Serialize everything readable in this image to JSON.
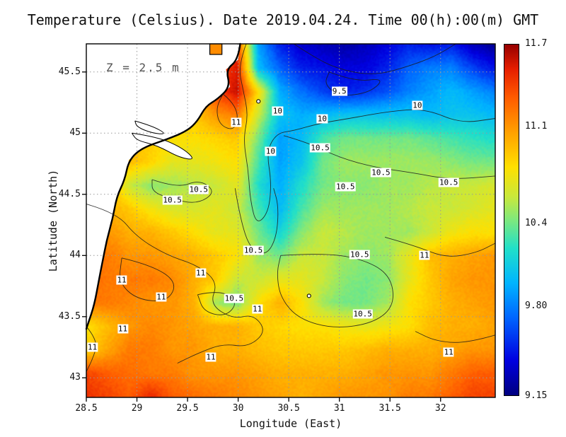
{
  "title": "Temperature (Celsius). Date 2019.04.24. Time 00(h):00(m) GMT",
  "annotation": "Z = 2.5 m",
  "axes": {
    "xlabel": "Longitude (East)",
    "ylabel": "Latitude (North)",
    "x_range": [
      28.5,
      32.54
    ],
    "y_range": [
      42.84,
      45.73
    ],
    "x_ticks": [
      28.5,
      29,
      29.5,
      30,
      30.5,
      31,
      31.5,
      32
    ],
    "x_tick_labels": [
      "28.5",
      "29",
      "29.5",
      "30",
      "30.5",
      "31",
      "31.5",
      "32"
    ],
    "y_ticks": [
      43,
      43.5,
      44,
      44.5,
      45,
      45.5
    ],
    "y_tick_labels": [
      "43",
      "43.5",
      "44",
      "44.5",
      "45",
      "45.5"
    ]
  },
  "colorbar": {
    "vmin": 9.15,
    "vmax": 11.7,
    "tick_values": [
      11.7,
      11.1,
      10.4,
      9.8,
      9.15
    ],
    "tick_labels": [
      "11.7",
      "11.1",
      "10.4",
      "9.80",
      "9.15"
    ]
  },
  "chart_data": {
    "type": "heatmap",
    "title": "Temperature (Celsius). Date 2019.04.24. Time 00(h):00(m) GMT",
    "depth_label": "Z = 2.5 m",
    "units": "Celsius",
    "x_range": [
      28.5,
      32.54
    ],
    "y_range": [
      42.84,
      45.73
    ],
    "grid_lat_top_to_bottom": [
      45.75,
      45.56,
      45.37,
      45.17,
      44.98,
      44.79,
      44.59,
      44.4,
      44.21,
      44.01,
      43.82,
      43.63,
      43.43,
      43.24,
      43.05,
      42.85
    ],
    "grid": [
      [
        11.0,
        11.0,
        11.0,
        11.0,
        11.0,
        11.0,
        11.2,
        11.4,
        9.9,
        9.5,
        9.35,
        9.3,
        9.25,
        9.3,
        9.4,
        9.5,
        9.45,
        9.5,
        9.3,
        9.2
      ],
      [
        11.0,
        11.0,
        11.0,
        11.0,
        11.0,
        11.0,
        11.3,
        11.55,
        10.0,
        9.7,
        9.5,
        9.45,
        9.4,
        9.4,
        9.5,
        9.7,
        9.8,
        9.8,
        9.6,
        9.45
      ],
      [
        11.0,
        11.0,
        11.0,
        11.0,
        11.0,
        11.0,
        11.4,
        11.6,
        10.8,
        9.95,
        9.75,
        9.6,
        9.5,
        9.55,
        9.65,
        9.8,
        9.9,
        10.0,
        9.9,
        9.8
      ],
      [
        11.0,
        11.0,
        11.0,
        11.0,
        11.0,
        10.9,
        11.1,
        11.2,
        10.6,
        10.05,
        9.95,
        10.0,
        10.05,
        10.05,
        10.05,
        10.05,
        10.0,
        10.05,
        10.05,
        10.0
      ],
      [
        11.0,
        11.0,
        11.0,
        10.9,
        10.8,
        10.8,
        10.85,
        10.9,
        10.4,
        9.9,
        10.0,
        10.3,
        10.4,
        10.4,
        10.4,
        10.4,
        10.35,
        10.3,
        10.25,
        10.2
      ],
      [
        11.0,
        11.0,
        10.95,
        10.85,
        10.7,
        10.7,
        10.75,
        10.8,
        10.3,
        9.9,
        10.05,
        10.4,
        10.5,
        10.5,
        10.5,
        10.5,
        10.5,
        10.45,
        10.4,
        10.4
      ],
      [
        11.1,
        11.0,
        10.6,
        10.45,
        10.5,
        10.55,
        10.6,
        10.7,
        10.2,
        9.95,
        10.2,
        10.4,
        10.45,
        10.45,
        10.5,
        10.5,
        10.55,
        10.6,
        10.6,
        10.65
      ],
      [
        11.1,
        11.0,
        10.9,
        10.75,
        10.65,
        10.65,
        10.7,
        10.6,
        10.3,
        10.0,
        10.3,
        10.5,
        10.5,
        10.5,
        10.5,
        10.55,
        10.6,
        10.6,
        10.65,
        10.7
      ],
      [
        11.2,
        11.1,
        11.0,
        11.0,
        10.9,
        10.8,
        10.7,
        10.7,
        10.4,
        10.15,
        10.45,
        10.6,
        10.55,
        10.5,
        10.5,
        10.5,
        10.6,
        10.75,
        10.8,
        10.8
      ],
      [
        11.2,
        11.2,
        11.1,
        11.1,
        11.05,
        11.0,
        10.9,
        10.8,
        10.5,
        10.4,
        10.6,
        10.6,
        10.5,
        10.45,
        10.5,
        10.7,
        10.95,
        11.0,
        11.05,
        11.1
      ],
      [
        11.3,
        11.2,
        11.2,
        11.2,
        11.15,
        11.0,
        10.9,
        10.6,
        10.6,
        10.7,
        10.7,
        10.6,
        10.45,
        10.4,
        10.45,
        10.7,
        10.9,
        11.05,
        11.1,
        11.1
      ],
      [
        11.2,
        11.2,
        11.15,
        11.1,
        11.1,
        11.0,
        10.5,
        10.4,
        10.8,
        11.0,
        10.8,
        10.5,
        10.4,
        10.4,
        10.5,
        10.8,
        10.9,
        11.0,
        11.05,
        11.1
      ],
      [
        10.8,
        10.95,
        11.1,
        11.15,
        11.1,
        11.05,
        11.0,
        11.0,
        10.9,
        10.85,
        10.8,
        10.8,
        10.75,
        10.7,
        10.75,
        10.8,
        10.95,
        11.0,
        11.0,
        11.05
      ],
      [
        10.85,
        11.05,
        11.2,
        11.2,
        11.1,
        11.1,
        11.0,
        11.0,
        10.95,
        10.9,
        10.9,
        10.9,
        10.9,
        10.95,
        11.0,
        11.0,
        11.0,
        11.05,
        11.1,
        11.1
      ],
      [
        11.4,
        11.3,
        11.25,
        11.2,
        11.2,
        11.1,
        11.1,
        11.1,
        11.05,
        11.0,
        11.0,
        11.0,
        11.0,
        11.05,
        11.1,
        11.1,
        11.1,
        11.2,
        11.3,
        11.3
      ],
      [
        11.45,
        11.4,
        11.3,
        11.5,
        11.3,
        11.25,
        11.2,
        11.15,
        11.1,
        11.05,
        11.0,
        11.05,
        11.1,
        11.1,
        11.1,
        11.2,
        11.2,
        11.3,
        11.4,
        11.4
      ]
    ],
    "colormap": [
      [
        0.0,
        "#000080"
      ],
      [
        0.1,
        "#0000e0"
      ],
      [
        0.22,
        "#0064ff"
      ],
      [
        0.32,
        "#00b4ff"
      ],
      [
        0.42,
        "#22e0c8"
      ],
      [
        0.5,
        "#7ee87d"
      ],
      [
        0.565,
        "#c8e83c"
      ],
      [
        0.65,
        "#ffe000"
      ],
      [
        0.75,
        "#ffa000"
      ],
      [
        0.85,
        "#ff5a00"
      ],
      [
        0.93,
        "#e61e00"
      ],
      [
        1.0,
        "#960000"
      ]
    ],
    "contour_labels": [
      {
        "v": "9.5",
        "lon": 31.0,
        "lat": 45.34
      },
      {
        "v": "10",
        "lon": 30.39,
        "lat": 45.18
      },
      {
        "v": "10",
        "lon": 30.83,
        "lat": 45.12
      },
      {
        "v": "10",
        "lon": 31.77,
        "lat": 45.23
      },
      {
        "v": "11",
        "lon": 29.98,
        "lat": 45.09
      },
      {
        "v": "10",
        "lon": 30.32,
        "lat": 44.85
      },
      {
        "v": "10.5",
        "lon": 30.81,
        "lat": 44.88
      },
      {
        "v": "10.5",
        "lon": 31.41,
        "lat": 44.68
      },
      {
        "v": "10.5",
        "lon": 32.08,
        "lat": 44.6
      },
      {
        "v": "10.5",
        "lon": 31.06,
        "lat": 44.56
      },
      {
        "v": "10.5",
        "lon": 29.61,
        "lat": 44.54
      },
      {
        "v": "10.5",
        "lon": 29.35,
        "lat": 44.45
      },
      {
        "v": "10.5",
        "lon": 30.15,
        "lat": 44.04
      },
      {
        "v": "10.5",
        "lon": 31.2,
        "lat": 44.01
      },
      {
        "v": "11",
        "lon": 31.84,
        "lat": 44.0
      },
      {
        "v": "11",
        "lon": 28.85,
        "lat": 43.8
      },
      {
        "v": "11",
        "lon": 29.63,
        "lat": 43.86
      },
      {
        "v": "10.5",
        "lon": 29.96,
        "lat": 43.65
      },
      {
        "v": "11",
        "lon": 29.24,
        "lat": 43.66
      },
      {
        "v": "11",
        "lon": 30.19,
        "lat": 43.56
      },
      {
        "v": "10.5",
        "lon": 31.23,
        "lat": 43.52
      },
      {
        "v": "11",
        "lon": 28.86,
        "lat": 43.4
      },
      {
        "v": "11",
        "lon": 28.56,
        "lat": 43.25
      },
      {
        "v": "11",
        "lon": 29.73,
        "lat": 43.17
      },
      {
        "v": "11",
        "lon": 32.08,
        "lat": 43.21
      }
    ],
    "contours": [
      {
        "level": "9.5",
        "points": [
          [
            30.55,
            45.73
          ],
          [
            30.75,
            45.62
          ],
          [
            31.0,
            45.52
          ],
          [
            31.35,
            45.47
          ],
          [
            31.7,
            45.55
          ],
          [
            31.95,
            45.63
          ],
          [
            32.15,
            45.73
          ]
        ]
      },
      {
        "level": "9.5",
        "points": [
          [
            30.9,
            45.5
          ],
          [
            31.15,
            45.42
          ],
          [
            31.45,
            45.45
          ],
          [
            31.3,
            45.33
          ],
          [
            31.0,
            45.3
          ],
          [
            30.85,
            45.4
          ],
          [
            30.9,
            45.5
          ]
        ]
      },
      {
        "level": "10",
        "points": [
          [
            30.08,
            45.73
          ],
          [
            30.0,
            45.55
          ],
          [
            30.05,
            45.35
          ],
          [
            30.1,
            45.15
          ],
          [
            30.05,
            44.95
          ],
          [
            30.1,
            44.7
          ],
          [
            30.12,
            44.45
          ],
          [
            30.18,
            44.25
          ],
          [
            30.3,
            44.35
          ],
          [
            30.33,
            44.6
          ],
          [
            30.28,
            44.85
          ],
          [
            30.38,
            45.0
          ],
          [
            30.55,
            45.02
          ],
          [
            30.8,
            45.08
          ],
          [
            31.1,
            45.12
          ],
          [
            31.5,
            45.18
          ],
          [
            31.85,
            45.2
          ],
          [
            32.2,
            45.08
          ],
          [
            32.54,
            45.12
          ]
        ]
      },
      {
        "level": "10.5",
        "points": [
          [
            30.45,
            44.98
          ],
          [
            30.7,
            44.92
          ],
          [
            31.0,
            44.8
          ],
          [
            31.35,
            44.72
          ],
          [
            31.7,
            44.68
          ],
          [
            32.1,
            44.62
          ],
          [
            32.54,
            44.65
          ]
        ]
      },
      {
        "level": "10.5",
        "points": [
          [
            29.15,
            44.62
          ],
          [
            29.4,
            44.55
          ],
          [
            29.62,
            44.62
          ],
          [
            29.78,
            44.52
          ],
          [
            29.6,
            44.42
          ],
          [
            29.35,
            44.46
          ],
          [
            29.15,
            44.52
          ],
          [
            29.15,
            44.62
          ]
        ]
      },
      {
        "level": "10.5",
        "points": [
          [
            29.97,
            44.55
          ],
          [
            30.02,
            44.3
          ],
          [
            30.12,
            44.05
          ],
          [
            30.28,
            44.0
          ],
          [
            30.38,
            44.15
          ],
          [
            30.4,
            44.4
          ],
          [
            30.35,
            44.55
          ]
        ]
      },
      {
        "level": "10.5",
        "points": [
          [
            30.42,
            44.0
          ],
          [
            30.8,
            44.02
          ],
          [
            31.2,
            43.98
          ],
          [
            31.5,
            43.85
          ],
          [
            31.55,
            43.6
          ],
          [
            31.35,
            43.45
          ],
          [
            30.95,
            43.4
          ],
          [
            30.6,
            43.48
          ],
          [
            30.42,
            43.65
          ],
          [
            30.38,
            43.85
          ],
          [
            30.42,
            44.0
          ]
        ]
      },
      {
        "level": "10.5",
        "points": [
          [
            29.6,
            43.68
          ],
          [
            29.82,
            43.72
          ],
          [
            30.0,
            43.62
          ],
          [
            29.88,
            43.5
          ],
          [
            29.66,
            43.54
          ],
          [
            29.6,
            43.68
          ]
        ]
      },
      {
        "level": "11",
        "points": [
          [
            28.5,
            44.42
          ],
          [
            28.8,
            44.35
          ],
          [
            29.0,
            44.15
          ],
          [
            29.3,
            44.0
          ],
          [
            29.6,
            43.92
          ],
          [
            29.8,
            43.78
          ],
          [
            29.72,
            43.6
          ],
          [
            29.95,
            43.48
          ],
          [
            30.15,
            43.52
          ],
          [
            30.28,
            43.38
          ],
          [
            30.1,
            43.25
          ],
          [
            29.85,
            43.28
          ],
          [
            29.6,
            43.2
          ],
          [
            29.4,
            43.12
          ]
        ]
      },
      {
        "level": "11",
        "points": [
          [
            28.85,
            43.98
          ],
          [
            29.15,
            43.92
          ],
          [
            29.4,
            43.78
          ],
          [
            29.3,
            43.62
          ],
          [
            29.0,
            43.64
          ],
          [
            28.82,
            43.78
          ],
          [
            28.85,
            43.98
          ]
        ]
      },
      {
        "level": "11",
        "points": [
          [
            31.45,
            44.15
          ],
          [
            31.75,
            44.08
          ],
          [
            32.05,
            43.98
          ],
          [
            32.35,
            44.02
          ],
          [
            32.54,
            44.1
          ]
        ]
      },
      {
        "level": "11",
        "points": [
          [
            32.54,
            43.35
          ],
          [
            32.25,
            43.28
          ],
          [
            31.95,
            43.3
          ],
          [
            31.75,
            43.38
          ]
        ]
      },
      {
        "level": "11",
        "points": [
          [
            29.85,
            45.32
          ],
          [
            30.0,
            45.22
          ],
          [
            29.98,
            45.02
          ],
          [
            29.82,
            45.06
          ],
          [
            29.78,
            45.2
          ],
          [
            29.85,
            45.32
          ]
        ]
      },
      {
        "level": "11",
        "points": [
          [
            28.5,
            43.42
          ],
          [
            28.62,
            43.3
          ],
          [
            28.56,
            43.15
          ],
          [
            28.5,
            43.05
          ]
        ]
      }
    ],
    "coastline": [
      [
        30.02,
        45.73
      ],
      [
        30.0,
        45.6
      ],
      [
        29.88,
        45.52
      ],
      [
        29.92,
        45.38
      ],
      [
        29.8,
        45.28
      ],
      [
        29.68,
        45.22
      ],
      [
        29.6,
        45.1
      ],
      [
        29.5,
        45.02
      ],
      [
        29.3,
        44.95
      ],
      [
        29.05,
        44.88
      ],
      [
        28.92,
        44.78
      ],
      [
        28.88,
        44.62
      ],
      [
        28.8,
        44.48
      ],
      [
        28.76,
        44.3
      ],
      [
        28.7,
        44.12
      ],
      [
        28.66,
        43.95
      ],
      [
        28.62,
        43.78
      ],
      [
        28.58,
        43.6
      ],
      [
        28.52,
        43.45
      ],
      [
        28.5,
        43.4
      ]
    ],
    "lakes": [
      [
        [
          28.95,
          45.0
        ],
        [
          29.2,
          44.97
        ],
        [
          29.45,
          44.88
        ],
        [
          29.58,
          44.78
        ],
        [
          29.42,
          44.8
        ],
        [
          29.2,
          44.9
        ],
        [
          29.0,
          44.94
        ],
        [
          28.95,
          45.0
        ]
      ],
      [
        [
          28.98,
          45.1
        ],
        [
          29.15,
          45.06
        ],
        [
          29.3,
          44.99
        ],
        [
          29.15,
          45.0
        ],
        [
          29.0,
          45.05
        ],
        [
          28.98,
          45.1
        ]
      ]
    ],
    "islands": [
      [
        30.2,
        45.26
      ],
      [
        30.7,
        43.67
      ]
    ],
    "inlet": {
      "lon0": 29.72,
      "lon1": 29.84,
      "color": "#ff8c00"
    },
    "grid_on": true
  }
}
